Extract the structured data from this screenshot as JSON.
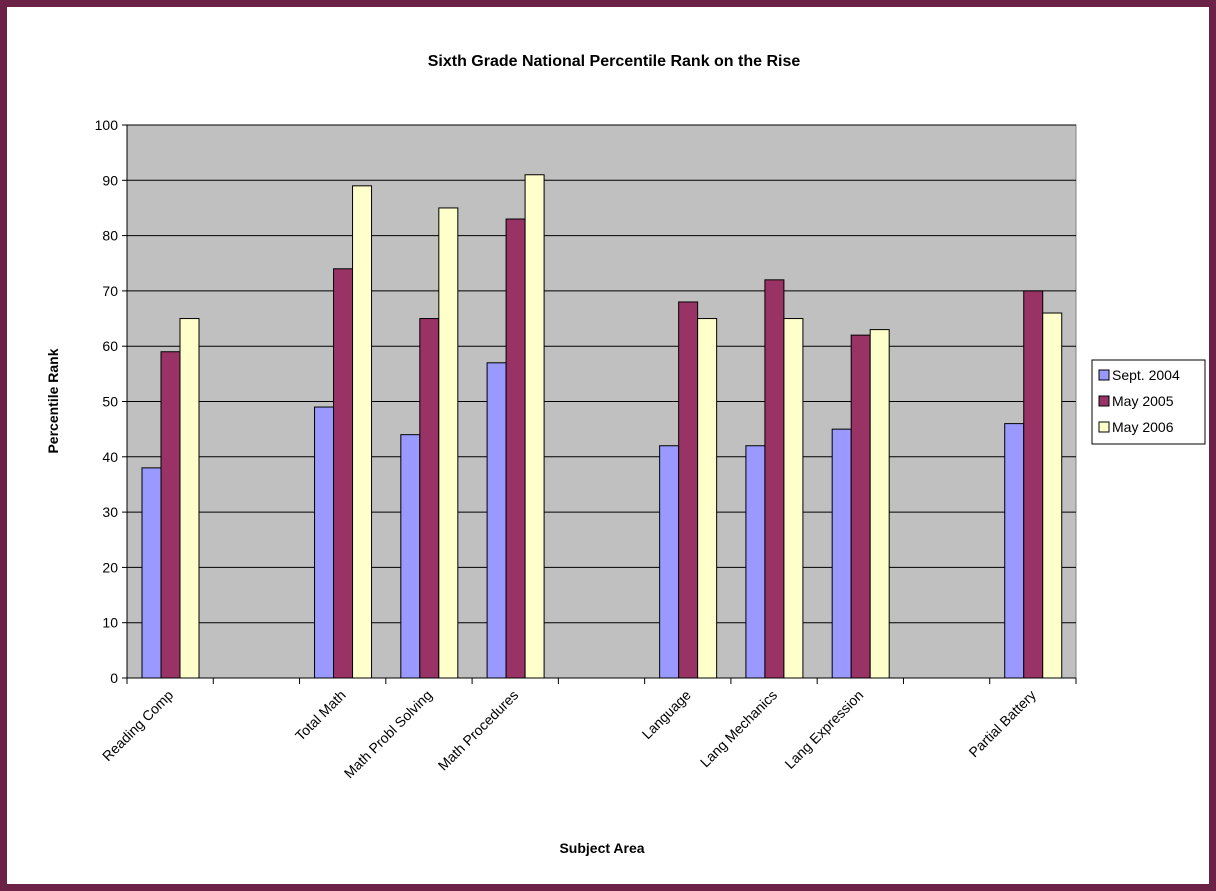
{
  "chart_data": {
    "type": "bar",
    "title": "Sixth Grade National Percentile Rank on the Rise",
    "xlabel": "Subject Area",
    "ylabel": "Percentile Rank",
    "ylim": [
      0,
      100
    ],
    "yticks": [
      0,
      10,
      20,
      30,
      40,
      50,
      60,
      70,
      80,
      90,
      100
    ],
    "grid": true,
    "legend_position": "right",
    "categories": [
      "Reading Comp",
      "",
      "Total Math",
      "Math Probl Solving",
      "Math Procedures",
      "",
      "Language",
      "Lang Mechanics",
      "Lang Expression",
      "",
      "Partial Battery"
    ],
    "series": [
      {
        "name": "Sept. 2004",
        "color": "#9999ff",
        "values": [
          38,
          null,
          49,
          44,
          57,
          null,
          42,
          42,
          45,
          null,
          46
        ]
      },
      {
        "name": "May 2005",
        "color": "#993366",
        "values": [
          59,
          null,
          74,
          65,
          83,
          null,
          68,
          72,
          62,
          null,
          70
        ]
      },
      {
        "name": "May 2006",
        "color": "#ffffcc",
        "values": [
          65,
          null,
          89,
          85,
          91,
          null,
          65,
          65,
          63,
          null,
          66
        ]
      }
    ],
    "plot_background": "#c0c0c0",
    "frame_color": "#6b2246"
  }
}
